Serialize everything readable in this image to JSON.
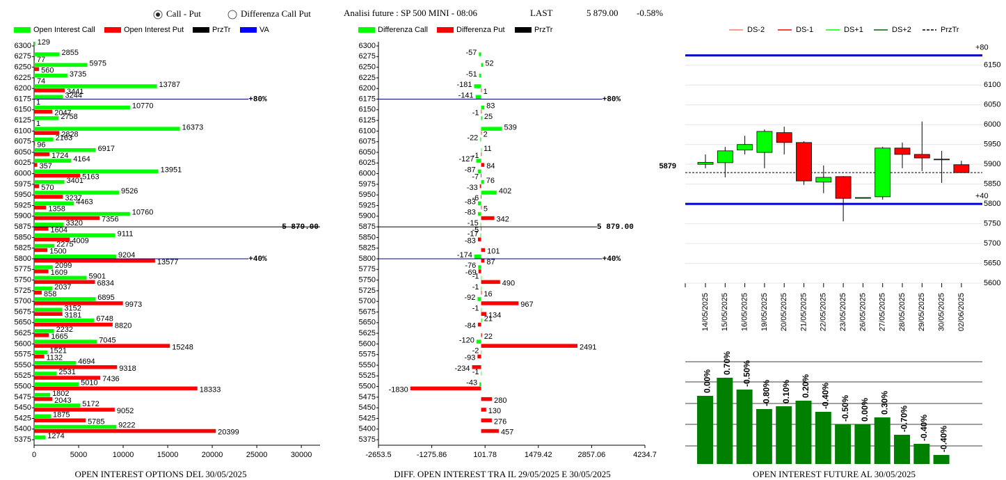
{
  "header": {
    "options": [
      {
        "label": "Call - Put",
        "selected": true
      },
      {
        "label": "Differenza Call Put",
        "selected": false
      }
    ],
    "instrument": "Analisi future : SP 500 MINI - 08:06",
    "last_label": "LAST",
    "last": "5 879.00",
    "change": "-0.58%"
  },
  "chart_data": [
    {
      "type": "bar",
      "orientation": "horizontal",
      "title": "OPEN INTEREST OPTIONS DEL 30/05/2025",
      "categories": [
        6300,
        6275,
        6250,
        6225,
        6200,
        6175,
        6150,
        6125,
        6100,
        6075,
        6050,
        6025,
        6000,
        5975,
        5950,
        5925,
        5900,
        5875,
        5850,
        5825,
        5800,
        5775,
        5750,
        5725,
        5700,
        5675,
        5650,
        5625,
        5600,
        5575,
        5550,
        5525,
        5500,
        5475,
        5450,
        5425,
        5400,
        5375
      ],
      "series": [
        {
          "name": "Open Interest Call",
          "color": "#00ff00",
          "values": [
            129,
            2855,
            5975,
            3735,
            13787,
            3244,
            10770,
            2758,
            16373,
            2163,
            6917,
            4164,
            13951,
            3401,
            9526,
            4463,
            10760,
            3320,
            9111,
            2275,
            9204,
            2099,
            5901,
            2037,
            6895,
            3152,
            6748,
            2232,
            7045,
            1521,
            4694,
            2531,
            5010,
            1802,
            5172,
            1875,
            9222,
            1274
          ]
        },
        {
          "name": "Open Interest Put",
          "color": "#ff0000",
          "values": [
            null,
            77,
            560,
            74,
            3441,
            1,
            2047,
            1,
            2828,
            96,
            1724,
            357,
            5163,
            570,
            3237,
            1358,
            7356,
            1604,
            4009,
            1500,
            13577,
            1609,
            6834,
            858,
            9973,
            3181,
            8820,
            1665,
            15248,
            1132,
            9318,
            7436,
            18333,
            2043,
            9052,
            5785,
            20399,
            null
          ]
        },
        {
          "name": "PrzTr",
          "color": "#000000"
        },
        {
          "name": "VA",
          "color": "#0000ff"
        }
      ],
      "annotations": [
        {
          "text": "+80%",
          "category": 6175,
          "color": "#000080"
        },
        {
          "text": "5 879.00",
          "category": 5875,
          "color": "#000000"
        },
        {
          "text": "+40%",
          "category": 5800,
          "color": "#000080"
        }
      ],
      "xlim": [
        0,
        32100
      ],
      "xticks": [
        0,
        5000,
        10000,
        15000,
        20000,
        25000,
        30000
      ]
    },
    {
      "type": "bar",
      "orientation": "horizontal",
      "title": "DIFF. OPEN INTEREST TRA IL 29/05/2025 E 30/05/2025",
      "categories": [
        6300,
        6275,
        6250,
        6225,
        6200,
        6175,
        6150,
        6125,
        6100,
        6075,
        6050,
        6025,
        6000,
        5975,
        5950,
        5925,
        5900,
        5875,
        5850,
        5825,
        5800,
        5775,
        5750,
        5725,
        5700,
        5675,
        5650,
        5625,
        5600,
        5575,
        5550,
        5525,
        5500,
        5475,
        5450,
        5425,
        5400,
        5375
      ],
      "series": [
        {
          "name": "Differenza Call",
          "color": "#00ff00",
          "values": [
            null,
            -57,
            52,
            -51,
            -181,
            -141,
            83,
            25,
            539,
            -22,
            11,
            -127,
            -87,
            76,
            402,
            -83,
            -83,
            -15,
            -17,
            null,
            -174,
            -76,
            -1,
            -1,
            -92,
            -1,
            21,
            null,
            -120,
            -2,
            null,
            -1,
            -43,
            null,
            null,
            null,
            null,
            null
          ]
        },
        {
          "name": "Differenza Put",
          "color": "#ff0000",
          "values": [
            null,
            null,
            null,
            null,
            1,
            null,
            -1,
            null,
            2,
            null,
            -1,
            84,
            -7,
            -33,
            -6,
            5,
            342,
            -5,
            -83,
            101,
            87,
            -69,
            490,
            16,
            967,
            134,
            -84,
            22,
            2491,
            -93,
            -234,
            null,
            -1830,
            280,
            130,
            276,
            457,
            null
          ]
        },
        {
          "name": "PrzTr",
          "color": "#000000"
        }
      ],
      "annotations": [
        {
          "text": "+80%",
          "category": 6175,
          "color": "#000080"
        },
        {
          "text": "5 879.00",
          "category": 5875,
          "color": "#000000"
        },
        {
          "text": "+40%",
          "category": 5800,
          "color": "#000080"
        }
      ],
      "xlim": [
        -2653.5,
        4234.7
      ],
      "xticks": [
        -2653.5,
        -1275.86,
        101.78,
        1479.42,
        2857.06,
        4234.7
      ]
    },
    {
      "type": "candlestick",
      "x": [
        "14/05/2025",
        "15/05/2025",
        "16/05/2025",
        "19/05/2025",
        "20/05/2025",
        "21/05/2025",
        "22/05/2025",
        "23/05/2025",
        "26/05/2025",
        "27/05/2025",
        "28/05/2025",
        "29/05/2025",
        "30/05/2025",
        "02/06/2025"
      ],
      "open": [
        5900,
        5904,
        5936,
        5930,
        5980,
        5955,
        5855,
        5869,
        5816,
        5818,
        5941,
        5925,
        5913,
        5899
      ],
      "high": [
        5925,
        5944,
        5972,
        5988,
        5995,
        5958,
        5897,
        5870,
        5816,
        5944,
        5955,
        6008,
        5934,
        5909
      ],
      "low": [
        5890,
        5867,
        5925,
        5890,
        5925,
        5848,
        5827,
        5756,
        5816,
        5811,
        5890,
        5883,
        5853,
        5879
      ],
      "close": [
        5905,
        5934,
        5950,
        5983,
        5955,
        5858,
        5867,
        5814,
        5816,
        5941,
        5925,
        5916,
        5913,
        5879
      ],
      "up_color": "#00ff00",
      "down_color": "#ff0000",
      "legend": [
        {
          "name": "DS-2",
          "color": "#f08060"
        },
        {
          "name": "DS-1",
          "color": "#ff0000"
        },
        {
          "name": "DS+1",
          "color": "#00ff00"
        },
        {
          "name": "DS+2",
          "color": "#006400"
        },
        {
          "name": "PrzTr",
          "color": "#000000",
          "dashed": true
        }
      ],
      "lines": [
        {
          "value": 6175,
          "label": "+80",
          "color": "#0000cc"
        },
        {
          "value": 5800,
          "label": "+40",
          "color": "#0000cc"
        },
        {
          "value": 5879,
          "label": "5879",
          "color": "#000000",
          "dashed": true
        }
      ],
      "ylim": [
        5600,
        6227
      ],
      "yticks": [
        5600,
        5650,
        5700,
        5750,
        5800,
        5850,
        5900,
        5950,
        6000,
        6050,
        6100,
        6150
      ]
    },
    {
      "type": "bar",
      "title": "OPEN INTEREST FUTURE AL 30/05/2025",
      "color": "#008000",
      "values": [
        98,
        124,
        107,
        79,
        83,
        91,
        75,
        57,
        57,
        67,
        42,
        29,
        13
      ],
      "labels": [
        "0.00%",
        "0.70%",
        "-0.50%",
        "-0.80%",
        "0.10%",
        "0.20%",
        "-0.40%",
        "-0.50%",
        "0.00%",
        "0.30%",
        "-0.70%",
        "-0.40%",
        "-0.40%"
      ],
      "ylim": [
        0,
        147
      ]
    }
  ]
}
